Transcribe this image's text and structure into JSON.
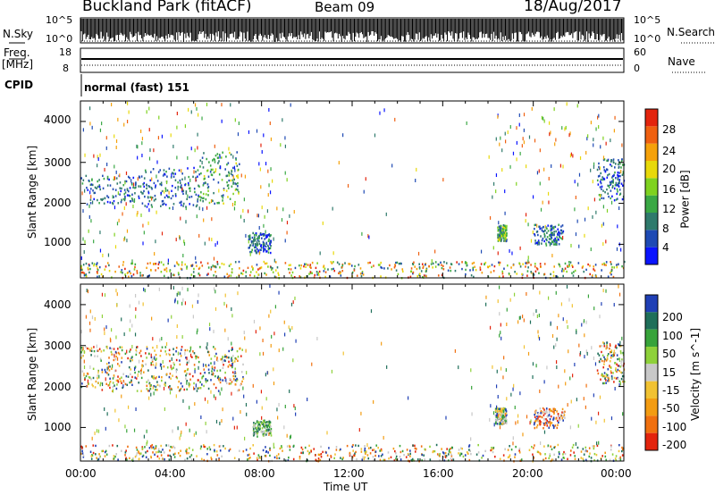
{
  "header": {
    "station": "Buckland Park (fitACF)",
    "beam": "Beam 09",
    "date": "18/Aug/2017"
  },
  "noise_panel": {
    "left_label": "N.Sky",
    "right_label": "N.Search",
    "left_ticks": [
      "10^5",
      "10^0"
    ],
    "right_ticks": [
      "10^5",
      "10^0"
    ]
  },
  "freq_panel": {
    "left_label_top": "Freq.",
    "left_label_unit": "[MHz]",
    "left_ticks": [
      "18",
      "8"
    ],
    "right_ticks": [
      "60",
      "0"
    ],
    "right_label": "Nave"
  },
  "cpid": {
    "label": "CPID",
    "value": "normal (fast) 151"
  },
  "chart_data": [
    {
      "type": "heatmap",
      "name": "Power",
      "ylabel": "Slant Range [km]",
      "yticks": [
        "4000",
        "3000",
        "2000",
        "1000"
      ],
      "ylim": [
        180,
        4500
      ],
      "colorbar": {
        "label": "Power [dB]",
        "ticks": [
          "28",
          "24",
          "20",
          "16",
          "12",
          "8",
          "4"
        ],
        "range": [
          0,
          30
        ],
        "colors": [
          "#0a14ff",
          "#1e4ab4",
          "#2f7a6c",
          "#3aa844",
          "#7fd21f",
          "#e8d90a",
          "#f5a10a",
          "#ef6010",
          "#e3240d"
        ]
      },
      "echo_regions": [
        {
          "t0": 0.0,
          "t1": 24.0,
          "r0": 200,
          "r1": 600,
          "level": "mixed"
        },
        {
          "t0": 0.0,
          "t1": 2.8,
          "r0": 2000,
          "r1": 2700,
          "level": "low"
        },
        {
          "t0": 2.8,
          "t1": 5.2,
          "r0": 1900,
          "r1": 2900,
          "level": "low"
        },
        {
          "t0": 5.2,
          "t1": 7.0,
          "r0": 2000,
          "r1": 3300,
          "level": "mid"
        },
        {
          "t0": 7.4,
          "t1": 8.4,
          "r0": 800,
          "r1": 1300,
          "level": "low"
        },
        {
          "t0": 18.4,
          "t1": 18.8,
          "r0": 1100,
          "r1": 1500,
          "level": "mid"
        },
        {
          "t0": 20.0,
          "t1": 21.3,
          "r0": 1000,
          "r1": 1500,
          "level": "low"
        },
        {
          "t0": 22.8,
          "t1": 24.0,
          "r0": 2100,
          "r1": 3100,
          "level": "low"
        }
      ]
    },
    {
      "type": "heatmap",
      "name": "Velocity",
      "ylabel": "Slant Range [km]",
      "xlabel": "Time UT",
      "xticks": [
        "00:00",
        "04:00",
        "08:00",
        "12:00",
        "16:00",
        "20:00",
        "00:00"
      ],
      "xlim_hours": [
        0,
        24
      ],
      "yticks": [
        "4000",
        "3000",
        "2000",
        "1000"
      ],
      "ylim": [
        180,
        4500
      ],
      "colorbar": {
        "label": "Velocity [m s^-1]",
        "ticks": [
          "200",
          "100",
          "50",
          "15",
          "-15",
          "-50",
          "-100",
          "-200"
        ],
        "colors": [
          "#1f3fb5",
          "#1f6f5a",
          "#37a33a",
          "#8ed13a",
          "#c8c8c8",
          "#f1c232",
          "#f39c12",
          "#f0700f",
          "#e3240d"
        ]
      },
      "echo_regions": [
        {
          "t0": 0.0,
          "t1": 24.0,
          "r0": 200,
          "r1": 600,
          "level": "mixed"
        },
        {
          "t0": 0.0,
          "t1": 7.2,
          "r0": 1900,
          "r1": 3000,
          "level": "mixed"
        },
        {
          "t0": 7.6,
          "t1": 8.4,
          "r0": 800,
          "r1": 1200,
          "level": "positive"
        },
        {
          "t0": 18.3,
          "t1": 18.8,
          "r0": 1100,
          "r1": 1500,
          "level": "low"
        },
        {
          "t0": 20.0,
          "t1": 21.4,
          "r0": 1000,
          "r1": 1500,
          "level": "negative"
        },
        {
          "t0": 22.8,
          "t1": 24.0,
          "r0": 2100,
          "r1": 3100,
          "level": "mixed"
        }
      ]
    }
  ]
}
